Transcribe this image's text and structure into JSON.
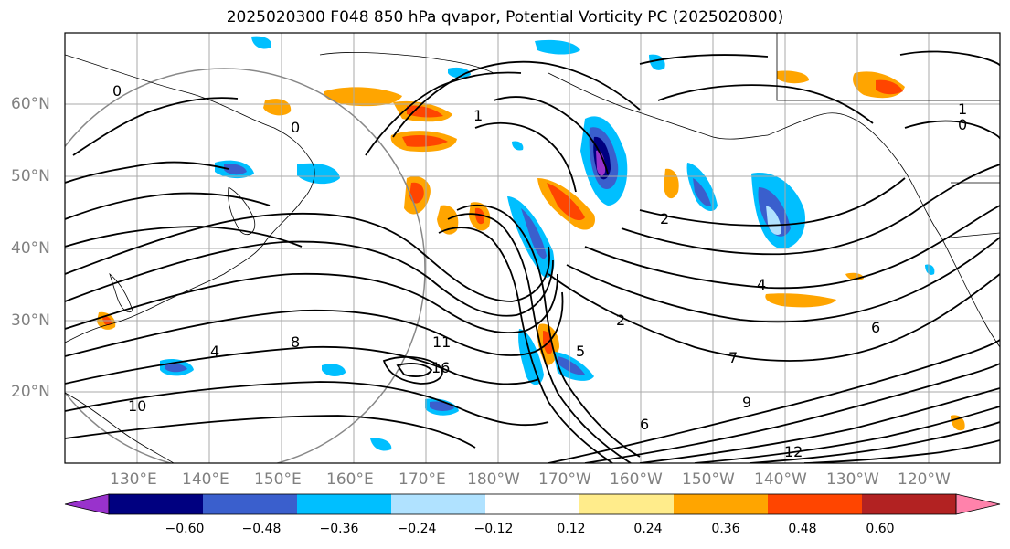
{
  "title": "2025020300 F048 850 hPa qvapor, Potential Vorticity PC (2025020800)",
  "lat_labels": [
    "60°N",
    "50°N",
    "40°N",
    "30°N",
    "20°N"
  ],
  "lon_labels": [
    "130°E",
    "140°E",
    "150°E",
    "160°E",
    "170°E",
    "180°W",
    "170°W",
    "160°W",
    "150°W",
    "140°W",
    "130°W",
    "120°W"
  ],
  "colorbar": {
    "ticks": [
      "−0.60",
      "−0.48",
      "−0.36",
      "−0.24",
      "−0.12",
      "0.12",
      "0.24",
      "0.36",
      "0.48",
      "0.60"
    ],
    "colors": [
      "#9932CC",
      "#000080",
      "#3A5FCD",
      "#00BFFF",
      "#B0E2FF",
      "#FFFFFF",
      "#FFEC8B",
      "#FFA500",
      "#FF4500",
      "#B22222",
      "#FF82AB"
    ]
  },
  "contour_labels": [
    "0",
    "0",
    "0",
    "1",
    "1",
    "2",
    "2",
    "4",
    "4",
    "5",
    "6",
    "6",
    "7",
    "8",
    "9",
    "10",
    "11",
    "12",
    "16"
  ]
}
